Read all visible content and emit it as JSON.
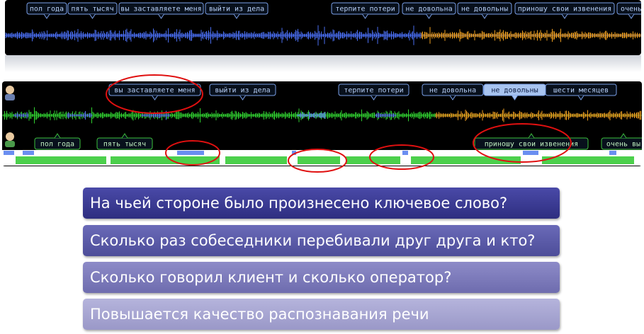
{
  "top_panel": {
    "tags": [
      "пол года",
      "пять тысяч",
      "вы заставляете меня",
      "выйти из дела",
      "терпите потери",
      "не довольна",
      "не довольны",
      "приношу свои извенения",
      "очень"
    ]
  },
  "bottom_panel": {
    "upper_tags": [
      "вы заставляете меня",
      "выйти из дела",
      "терпите потери",
      "не довольна",
      "не довольны",
      "шести месяцев"
    ],
    "lower_tags": [
      "пол года",
      "пять тысяч",
      "приношу свои извенения",
      "очень вы"
    ]
  },
  "questions": [
    "На чьей стороне было произнесено ключевое слово?",
    "Сколько раз собеседники перебивали друг друга и кто?",
    "Сколько говорил клиент и сколько оператор?",
    "Повышается качество распознавания речи"
  ]
}
